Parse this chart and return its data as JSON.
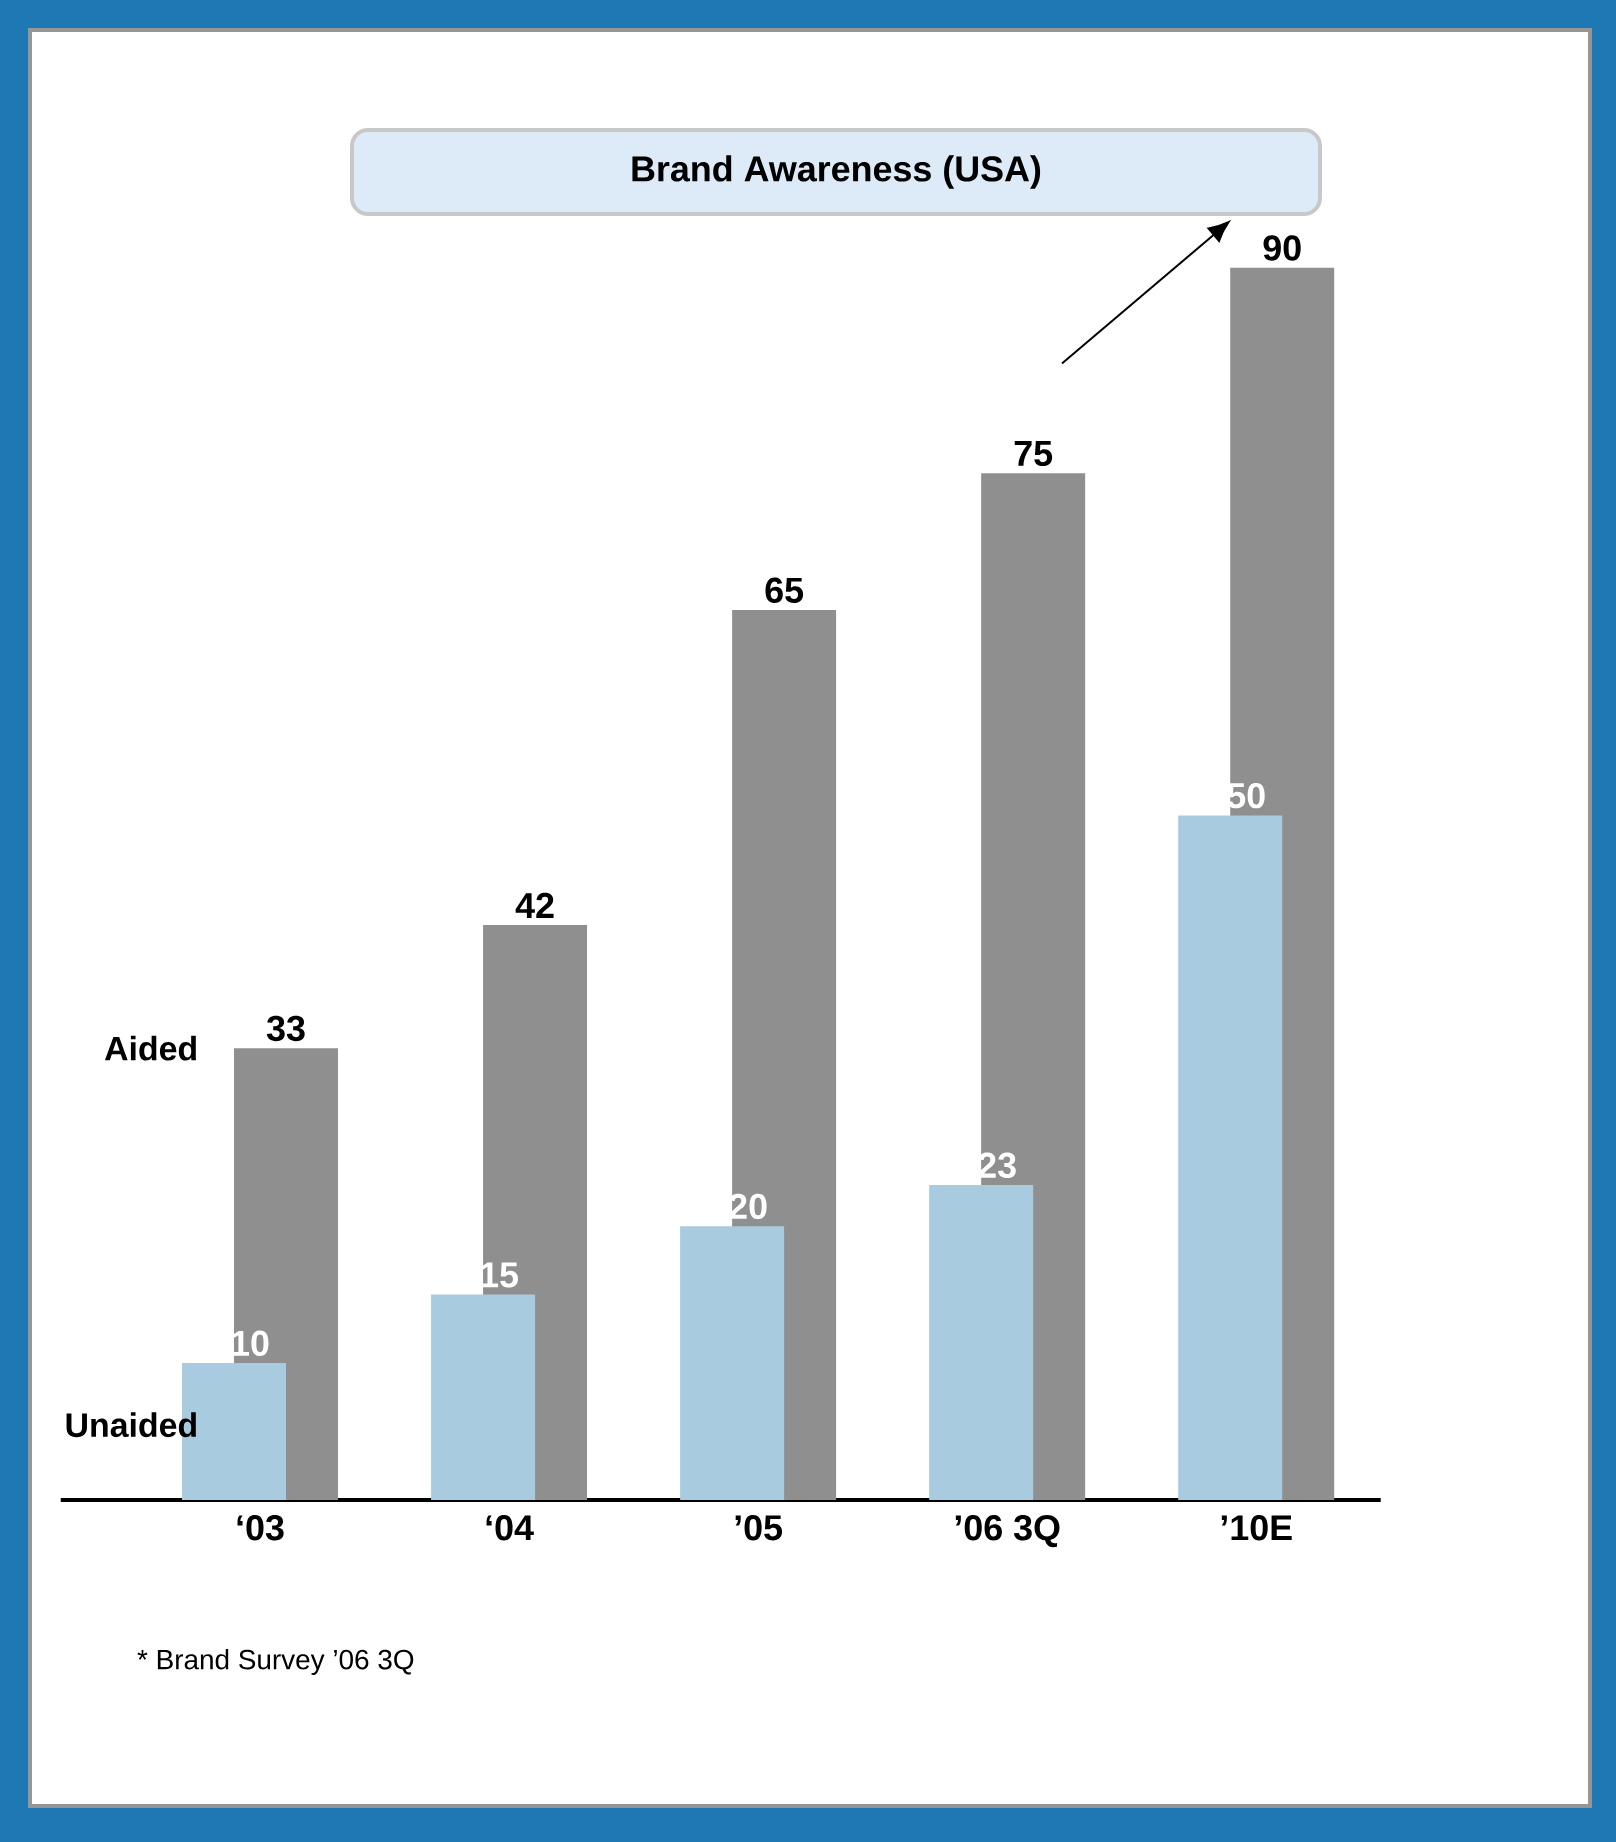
{
  "chart_data": {
    "type": "bar",
    "title": "Brand Awareness (USA)",
    "categories": [
      "‘03",
      "‘04",
      "’05",
      "’06 3Q",
      "’10E"
    ],
    "series": [
      {
        "name": "Unaided",
        "color": "#a9cbe0",
        "values": [
          10,
          15,
          20,
          23,
          50
        ]
      },
      {
        "name": "Aided",
        "color": "#8f8f8f",
        "values": [
          33,
          42,
          65,
          75,
          90
        ]
      }
    ],
    "data_labels": true,
    "annotations": [
      "* Brand Survey ’06 3Q"
    ]
  }
}
